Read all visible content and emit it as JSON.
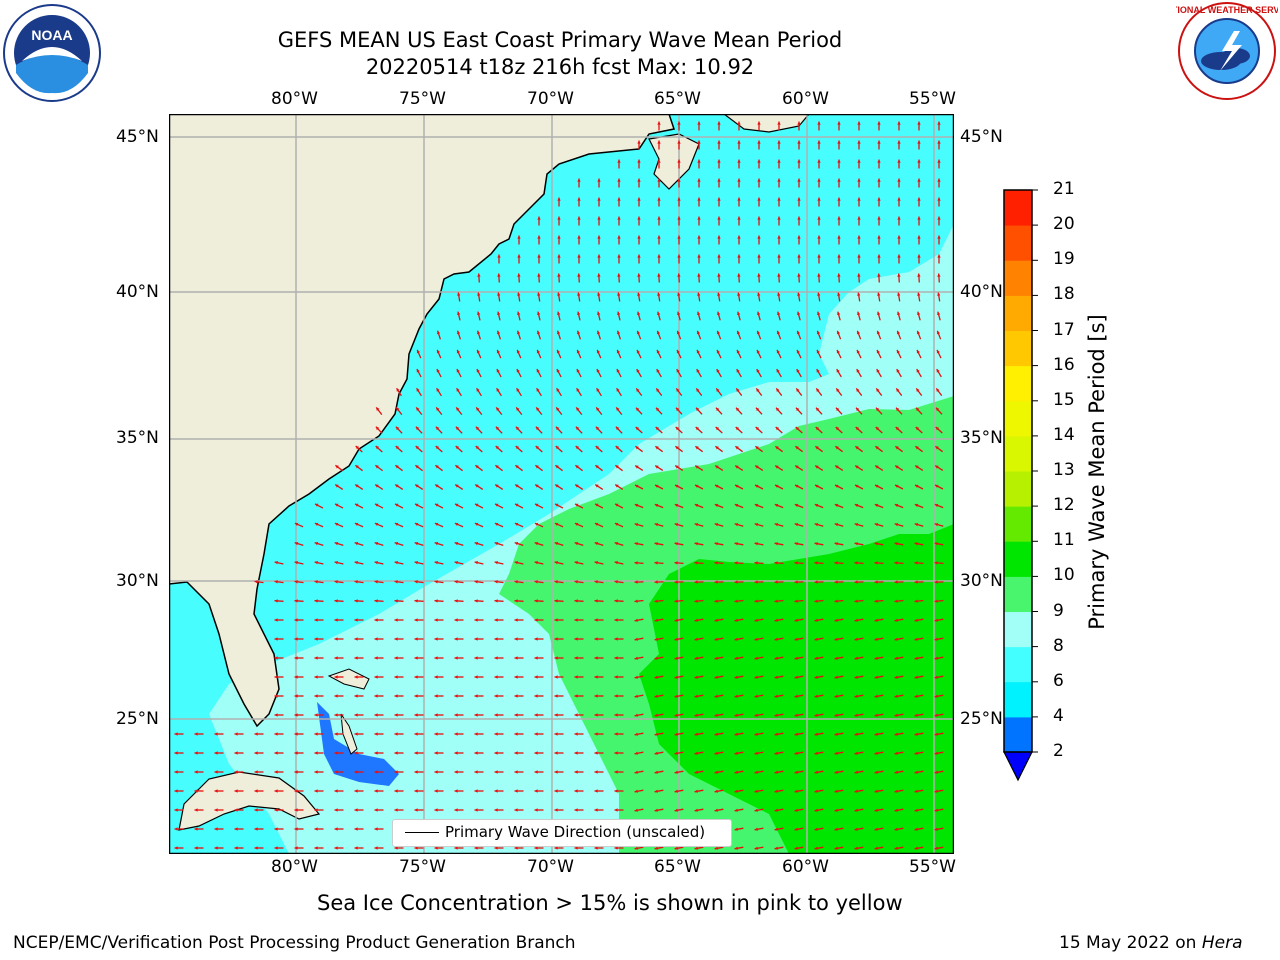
{
  "header": {
    "title_line1": "GEFS MEAN US East Coast Primary Wave Mean Period",
    "title_line2": "20220514 t18z 216h fcst   Max: 10.92"
  },
  "logos": {
    "left_text": "NOAA",
    "right_text": "NATIONAL WEATHER SERVICE"
  },
  "map": {
    "lon_labels": [
      "80°W",
      "75°W",
      "70°W",
      "65°W",
      "60°W",
      "55°W"
    ],
    "lat_labels": [
      "45°N",
      "40°N",
      "35°N",
      "30°N",
      "25°N"
    ],
    "legend_label": "Primary Wave Direction (unscaled)",
    "colors": {
      "land": "#efeedb",
      "water_cyan": "#47fdfd",
      "water_light": "#a0fff7",
      "green_light": "#45f56d",
      "green": "#00e600",
      "blue": "#1f77ff",
      "arrow": "#e61010",
      "grid": "#b0b0b0"
    }
  },
  "colorbar": {
    "title": "Primary Wave Mean Period [s]",
    "ticks": [
      "2",
      "4",
      "6",
      "8",
      "9",
      "10",
      "11",
      "12",
      "13",
      "14",
      "15",
      "16",
      "17",
      "18",
      "19",
      "20",
      "21"
    ],
    "colors": [
      "#0073ff",
      "#00f2ff",
      "#44ffff",
      "#a2fff7",
      "#48f56c",
      "#00e600",
      "#63ea00",
      "#b7f000",
      "#d8f700",
      "#eef600",
      "#ffef00",
      "#ffc800",
      "#ffaa00",
      "#ff8200",
      "#ff5000",
      "#ff2000"
    ],
    "under_color": "#0000ff"
  },
  "subtitle": "Sea Ice Concentration > 15% is shown in pink to yellow",
  "footer": {
    "left": "NCEP/EMC/Verification Post Processing Product Generation Branch",
    "right_prefix": "15 May 2022 on ",
    "right_host": "Hera"
  }
}
